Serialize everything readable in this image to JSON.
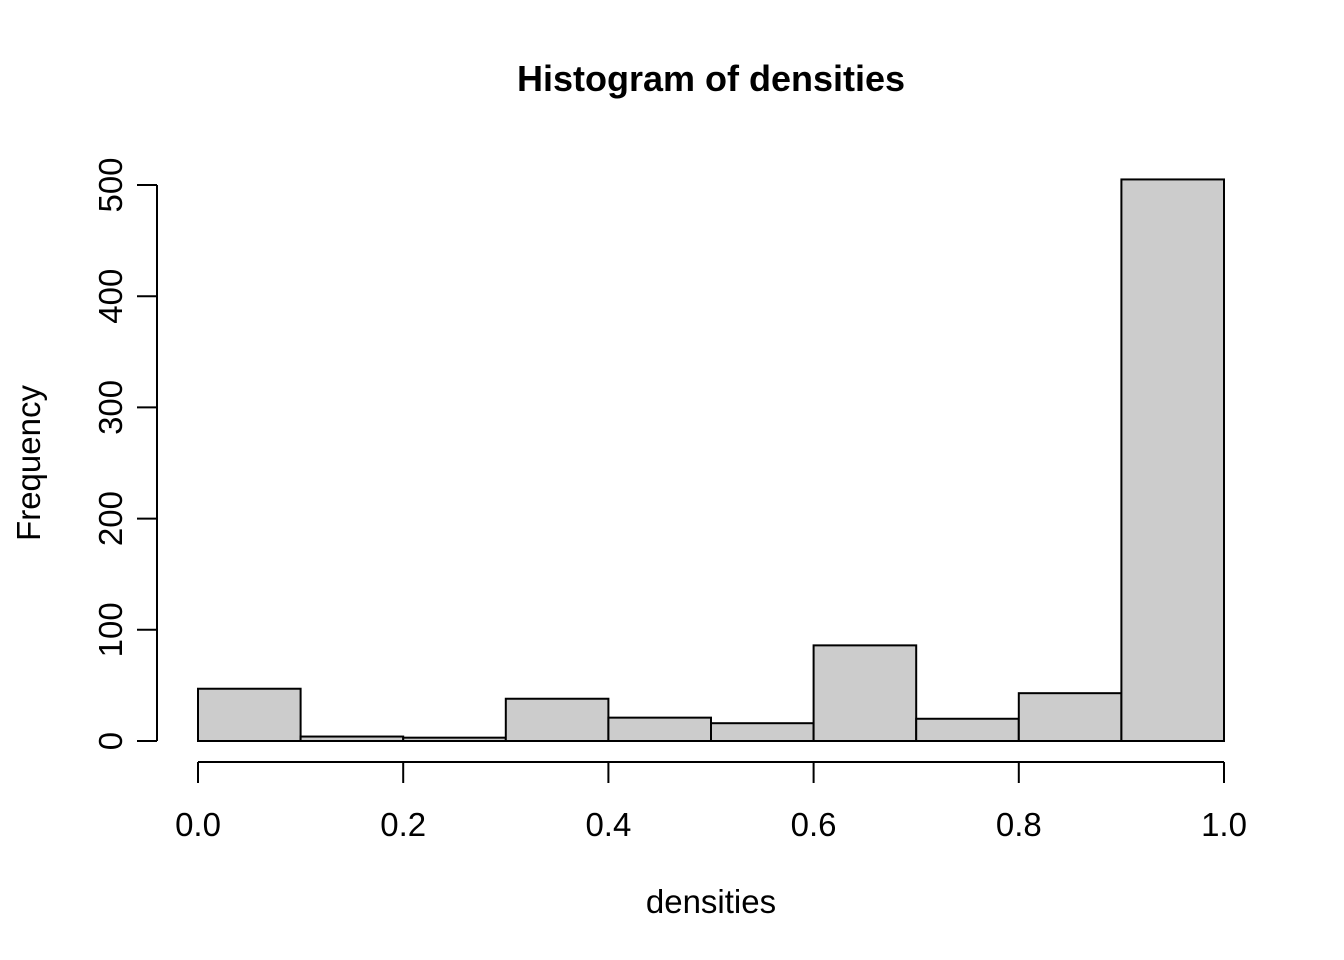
{
  "figure": {
    "title": "Histogram of densities",
    "xlabel": "densities",
    "ylabel": "Frequency"
  },
  "chart_data": {
    "type": "bar",
    "subtype": "histogram",
    "title": "Histogram of densities",
    "xlabel": "densities",
    "ylabel": "Frequency",
    "bin_edges": [
      0.0,
      0.1,
      0.2,
      0.3,
      0.4,
      0.5,
      0.6,
      0.7,
      0.8,
      0.9,
      1.0
    ],
    "counts": [
      47,
      4,
      3,
      38,
      21,
      16,
      86,
      20,
      43,
      505
    ],
    "xlim": [
      0.0,
      1.0
    ],
    "ylim": [
      0,
      500
    ],
    "xticks": [
      0.0,
      0.2,
      0.4,
      0.6,
      0.8,
      1.0
    ],
    "xtick_labels": [
      "0.0",
      "0.2",
      "0.4",
      "0.6",
      "0.8",
      "1.0"
    ],
    "yticks": [
      0,
      100,
      200,
      300,
      400,
      500
    ],
    "ytick_labels": [
      "0",
      "100",
      "200",
      "300",
      "400",
      "500"
    ],
    "grid": false,
    "legend": null,
    "bar_fill": "#cccccc",
    "bar_stroke": "#000000",
    "axis_color": "#000000",
    "background": "#ffffff"
  }
}
